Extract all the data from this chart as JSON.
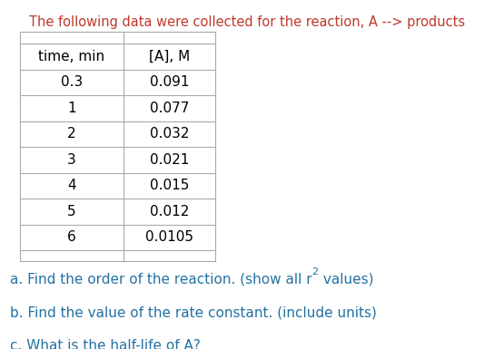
{
  "title": "The following data were collected for the reaction, A --> products",
  "title_color": "#C0392B",
  "col_headers": [
    "time, min",
    "[A], M"
  ],
  "rows": [
    [
      "0.3",
      "0.091"
    ],
    [
      "1",
      "0.077"
    ],
    [
      "2",
      "0.032"
    ],
    [
      "3",
      "0.021"
    ],
    [
      "4",
      "0.015"
    ],
    [
      "5",
      "0.012"
    ],
    [
      "6",
      "0.0105"
    ]
  ],
  "q_a_parts": [
    "a. Find the order of the reaction. (show all r",
    "2",
    " values)"
  ],
  "q_b": "b. Find the value of the rate constant. (include units)",
  "q_c": "c. What is the half-life of A?",
  "question_color": "#2471A3",
  "bg_color": "#FFFFFF",
  "table_line_color": "#AAAAAA",
  "text_color": "#000000",
  "title_fontsize": 10.5,
  "header_fontsize": 11,
  "data_fontsize": 11,
  "question_fontsize": 11
}
